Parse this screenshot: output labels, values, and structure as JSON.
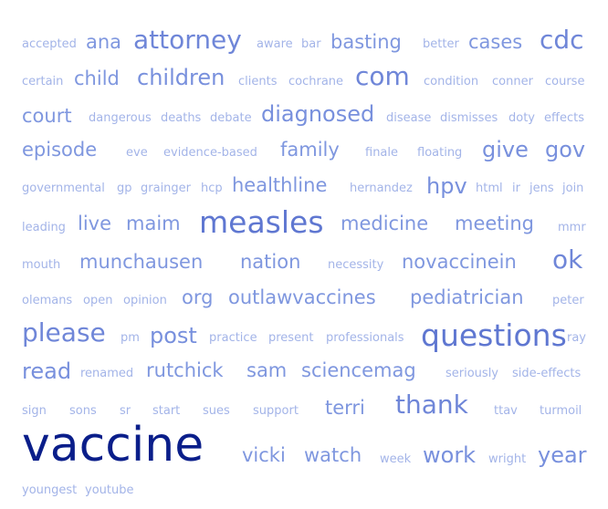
{
  "words": [
    {
      "text": "accepted",
      "size": 1
    },
    {
      "text": "ana",
      "size": 3
    },
    {
      "text": "attorney",
      "size": 5
    },
    {
      "text": "aware",
      "size": 1
    },
    {
      "text": "bar",
      "size": 1
    },
    {
      "text": "basting",
      "size": 3
    },
    {
      "text": "better",
      "size": 1
    },
    {
      "text": "cases",
      "size": 3
    },
    {
      "text": "cdc",
      "size": 5
    },
    {
      "text": "certain",
      "size": 1
    },
    {
      "text": "child",
      "size": 3
    },
    {
      "text": "children",
      "size": 4
    },
    {
      "text": "clients",
      "size": 1
    },
    {
      "text": "cochrane",
      "size": 1
    },
    {
      "text": "com",
      "size": 5
    },
    {
      "text": "condition",
      "size": 1
    },
    {
      "text": "conner",
      "size": 1
    },
    {
      "text": "course",
      "size": 1
    },
    {
      "text": "court",
      "size": 3
    },
    {
      "text": "dangerous",
      "size": 1
    },
    {
      "text": "deaths",
      "size": 1
    },
    {
      "text": "debate",
      "size": 1
    },
    {
      "text": "diagnosed",
      "size": 4
    },
    {
      "text": "disease",
      "size": 1
    },
    {
      "text": "dismisses",
      "size": 1
    },
    {
      "text": "doty",
      "size": 1
    },
    {
      "text": "effects",
      "size": 1
    },
    {
      "text": "episode",
      "size": 3
    },
    {
      "text": "eve",
      "size": 1
    },
    {
      "text": "evidence-based",
      "size": 1
    },
    {
      "text": "family",
      "size": 3
    },
    {
      "text": "finale",
      "size": 1
    },
    {
      "text": "floating",
      "size": 1
    },
    {
      "text": "give",
      "size": 4
    },
    {
      "text": "gov",
      "size": 4
    },
    {
      "text": "governmental",
      "size": 1
    },
    {
      "text": "gp",
      "size": 1
    },
    {
      "text": "grainger",
      "size": 1
    },
    {
      "text": "hcp",
      "size": 1
    },
    {
      "text": "healthline",
      "size": 3
    },
    {
      "text": "hernandez",
      "size": 1
    },
    {
      "text": "hpv",
      "size": 4
    },
    {
      "text": "html",
      "size": 1
    },
    {
      "text": "ir",
      "size": 1
    },
    {
      "text": "jens",
      "size": 1
    },
    {
      "text": "join",
      "size": 1
    },
    {
      "text": "leading",
      "size": 1
    },
    {
      "text": "live",
      "size": 3
    },
    {
      "text": "maim",
      "size": 3
    },
    {
      "text": "measles",
      "size": 6
    },
    {
      "text": "medicine",
      "size": 3
    },
    {
      "text": "meeting",
      "size": 3
    },
    {
      "text": "mmr",
      "size": 1
    },
    {
      "text": "mouth",
      "size": 1
    },
    {
      "text": "munchausen",
      "size": 3
    },
    {
      "text": "nation",
      "size": 3
    },
    {
      "text": "necessity",
      "size": 1
    },
    {
      "text": "novaccinein",
      "size": 3
    },
    {
      "text": "ok",
      "size": 5
    },
    {
      "text": "olemans",
      "size": 1
    },
    {
      "text": "open",
      "size": 1
    },
    {
      "text": "opinion",
      "size": 1
    },
    {
      "text": "org",
      "size": 3
    },
    {
      "text": "outlawvaccines",
      "size": 3
    },
    {
      "text": "pediatrician",
      "size": 3
    },
    {
      "text": "peter",
      "size": 1
    },
    {
      "text": "please",
      "size": 5
    },
    {
      "text": "pm",
      "size": 1
    },
    {
      "text": "post",
      "size": 4
    },
    {
      "text": "practice",
      "size": 1
    },
    {
      "text": "present",
      "size": 1
    },
    {
      "text": "professionals",
      "size": 1
    },
    {
      "text": "questions",
      "size": 6
    },
    {
      "text": "ray",
      "size": 1
    },
    {
      "text": "read",
      "size": 4
    },
    {
      "text": "renamed",
      "size": 1
    },
    {
      "text": "rutchick",
      "size": 3
    },
    {
      "text": "sam",
      "size": 3
    },
    {
      "text": "sciencemag",
      "size": 3
    },
    {
      "text": "seriously",
      "size": 1
    },
    {
      "text": "side-effects",
      "size": 1
    },
    {
      "text": "sign",
      "size": 1
    },
    {
      "text": "sons",
      "size": 1
    },
    {
      "text": "sr",
      "size": 1
    },
    {
      "text": "start",
      "size": 1
    },
    {
      "text": "sues",
      "size": 1
    },
    {
      "text": "support",
      "size": 1
    },
    {
      "text": "terri",
      "size": 3
    },
    {
      "text": "thank",
      "size": 5
    },
    {
      "text": "ttav",
      "size": 1
    },
    {
      "text": "turmoil",
      "size": 1
    },
    {
      "text": "vaccine",
      "size": 7
    },
    {
      "text": "vicki",
      "size": 3
    },
    {
      "text": "watch",
      "size": 3
    },
    {
      "text": "week",
      "size": 1
    },
    {
      "text": "work",
      "size": 4
    },
    {
      "text": "wright",
      "size": 1
    },
    {
      "text": "year",
      "size": 4
    },
    {
      "text": "youngest",
      "size": 1
    },
    {
      "text": "youtube",
      "size": 1
    }
  ]
}
